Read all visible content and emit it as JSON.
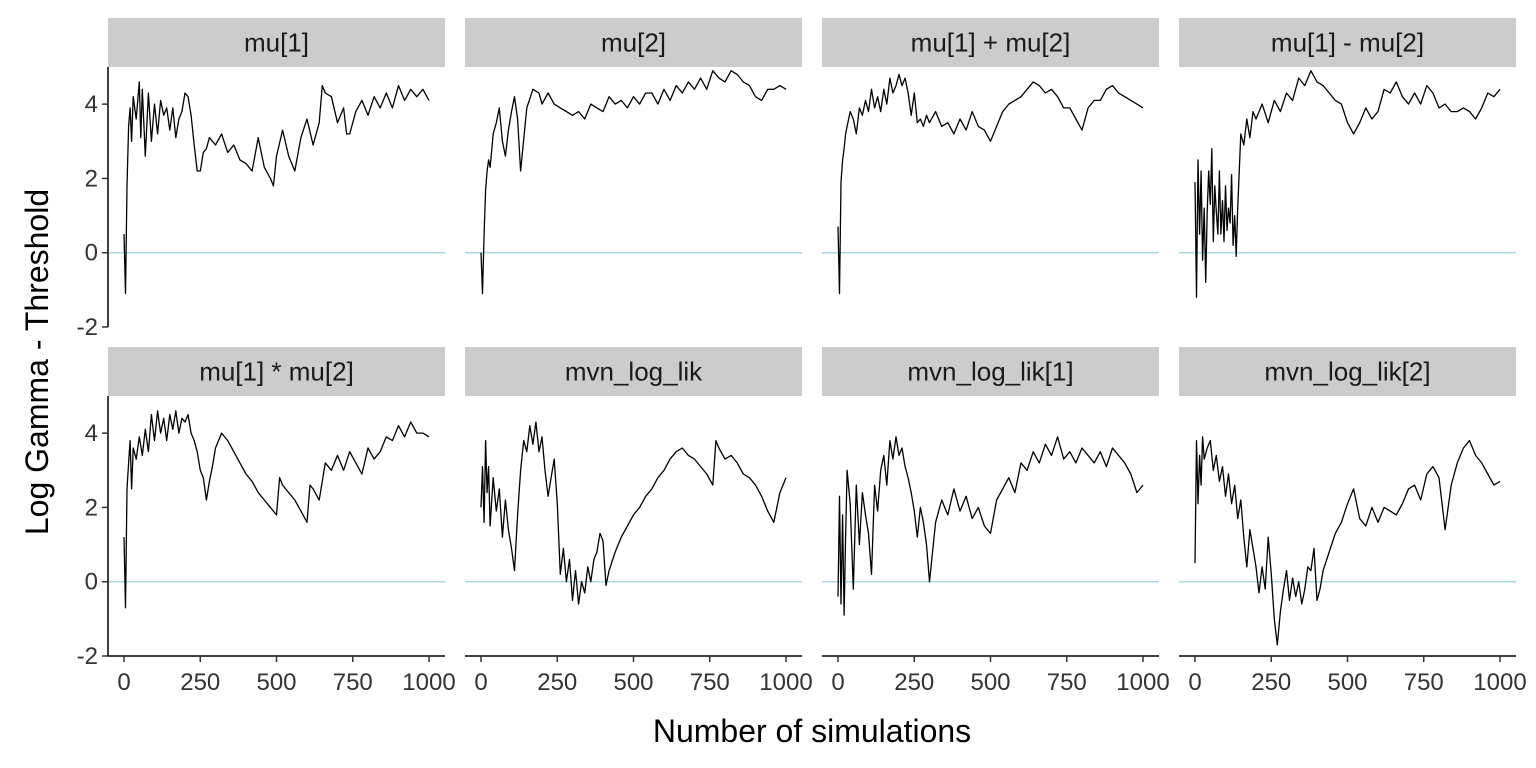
{
  "chart_data": {
    "type": "line",
    "xlabel": "Number of simulations",
    "ylabel": "Log Gamma - Threshold",
    "xlim": [
      0,
      1000
    ],
    "ylim": [
      -2,
      5
    ],
    "x_ticks": [
      0,
      250,
      500,
      750,
      1000
    ],
    "x_tick_labels": [
      "0",
      "250",
      "500",
      "750",
      "1000"
    ],
    "y_ticks": [
      -2,
      0,
      2,
      4
    ],
    "y_tick_labels": [
      "-2",
      "0",
      "2",
      "4"
    ],
    "reference_line": {
      "y": 0,
      "color": "#add8e6"
    },
    "line_color": "#000000",
    "strip_color": "#cccccc",
    "grid": false,
    "legend": "none",
    "facets": [
      {
        "title": "mu[1]",
        "x": [
          0,
          5,
          10,
          15,
          20,
          25,
          30,
          40,
          50,
          55,
          60,
          70,
          80,
          90,
          100,
          110,
          120,
          130,
          140,
          150,
          160,
          170,
          180,
          190,
          200,
          210,
          220,
          230,
          240,
          250,
          260,
          270,
          280,
          300,
          320,
          340,
          360,
          380,
          400,
          420,
          440,
          460,
          480,
          490,
          500,
          520,
          540,
          560,
          580,
          600,
          620,
          640,
          650,
          660,
          680,
          700,
          720,
          730,
          740,
          760,
          780,
          800,
          820,
          840,
          860,
          880,
          900,
          920,
          940,
          960,
          980,
          1000
        ],
        "y": [
          0.5,
          -1.1,
          1.8,
          3.4,
          3.9,
          3.0,
          4.2,
          3.6,
          4.6,
          3.1,
          4.4,
          2.6,
          4.3,
          3.0,
          4.0,
          3.2,
          4.1,
          3.7,
          3.9,
          3.3,
          3.9,
          3.1,
          3.6,
          3.8,
          4.3,
          4.2,
          3.7,
          2.9,
          2.2,
          2.2,
          2.7,
          2.8,
          3.1,
          2.9,
          3.2,
          2.7,
          2.9,
          2.5,
          2.4,
          2.2,
          3.1,
          2.3,
          2.0,
          1.8,
          2.6,
          3.3,
          2.6,
          2.2,
          3.1,
          3.6,
          2.9,
          3.5,
          4.5,
          4.3,
          4.2,
          3.5,
          3.9,
          3.2,
          3.2,
          3.8,
          4.1,
          3.7,
          4.2,
          3.9,
          4.3,
          3.9,
          4.5,
          4.1,
          4.4,
          4.2,
          4.4,
          4.1
        ]
      },
      {
        "title": "mu[2]",
        "x": [
          0,
          5,
          10,
          15,
          20,
          25,
          30,
          40,
          50,
          60,
          70,
          80,
          90,
          100,
          110,
          120,
          130,
          150,
          170,
          190,
          200,
          220,
          240,
          260,
          280,
          300,
          320,
          340,
          360,
          380,
          400,
          420,
          440,
          460,
          480,
          500,
          520,
          540,
          560,
          580,
          600,
          620,
          640,
          660,
          680,
          700,
          720,
          740,
          760,
          780,
          800,
          820,
          840,
          860,
          880,
          900,
          920,
          940,
          960,
          980,
          1000
        ],
        "y": [
          0,
          -1.1,
          0.5,
          1.7,
          2.2,
          2.5,
          2.3,
          3.2,
          3.5,
          3.9,
          3.0,
          2.6,
          3.3,
          3.8,
          4.2,
          3.6,
          2.2,
          3.9,
          4.4,
          4.3,
          4.0,
          4.3,
          4.0,
          3.9,
          3.8,
          3.7,
          3.8,
          3.6,
          4.0,
          3.9,
          3.8,
          4.2,
          4.0,
          4.1,
          3.9,
          4.2,
          4.0,
          4.3,
          4.3,
          4.0,
          4.4,
          4.1,
          4.5,
          4.3,
          4.6,
          4.4,
          4.7,
          4.4,
          4.9,
          4.7,
          4.6,
          4.9,
          4.8,
          4.6,
          4.5,
          4.2,
          4.1,
          4.4,
          4.4,
          4.5,
          4.4
        ]
      },
      {
        "title": "mu[1] + mu[2]",
        "x": [
          0,
          5,
          10,
          15,
          20,
          25,
          30,
          40,
          50,
          60,
          70,
          80,
          90,
          100,
          110,
          120,
          130,
          140,
          150,
          160,
          170,
          180,
          190,
          200,
          210,
          220,
          230,
          240,
          250,
          260,
          270,
          280,
          290,
          300,
          320,
          340,
          360,
          380,
          400,
          420,
          440,
          460,
          480,
          500,
          520,
          540,
          560,
          580,
          600,
          620,
          640,
          660,
          680,
          700,
          720,
          740,
          760,
          780,
          800,
          820,
          840,
          860,
          880,
          900,
          920,
          940,
          960,
          980,
          1000
        ],
        "y": [
          0.7,
          -1.1,
          1.9,
          2.5,
          2.8,
          3.2,
          3.4,
          3.8,
          3.6,
          3.2,
          3.9,
          3.7,
          4.1,
          3.8,
          4.4,
          3.9,
          4.2,
          3.8,
          4.4,
          4.0,
          4.7,
          4.3,
          4.5,
          4.8,
          4.5,
          4.7,
          4.3,
          3.7,
          4.3,
          3.5,
          3.6,
          3.4,
          3.7,
          3.5,
          3.8,
          3.4,
          3.5,
          3.2,
          3.6,
          3.3,
          3.8,
          3.4,
          3.3,
          3.0,
          3.4,
          3.8,
          4.0,
          4.1,
          4.2,
          4.4,
          4.6,
          4.5,
          4.3,
          4.4,
          4.2,
          3.9,
          3.9,
          3.6,
          3.3,
          3.9,
          4.1,
          4.1,
          4.4,
          4.5,
          4.3,
          4.2,
          4.1,
          4.0,
          3.9
        ]
      },
      {
        "title": "mu[1] - mu[2]",
        "x": [
          0,
          5,
          10,
          15,
          20,
          25,
          30,
          35,
          40,
          45,
          50,
          55,
          60,
          65,
          70,
          75,
          80,
          85,
          90,
          95,
          100,
          105,
          110,
          115,
          120,
          125,
          130,
          135,
          140,
          150,
          160,
          170,
          180,
          190,
          200,
          220,
          240,
          260,
          280,
          300,
          320,
          340,
          360,
          380,
          400,
          420,
          440,
          460,
          480,
          500,
          520,
          540,
          560,
          580,
          600,
          620,
          640,
          660,
          680,
          700,
          720,
          740,
          760,
          780,
          800,
          820,
          840,
          860,
          880,
          900,
          920,
          940,
          960,
          980,
          1000
        ],
        "y": [
          1.9,
          -1.2,
          2.5,
          0.5,
          2.2,
          -0.2,
          1.2,
          -0.8,
          1.1,
          2.2,
          1.3,
          2.8,
          0.3,
          1.8,
          1.1,
          0.5,
          2.2,
          0.5,
          1.4,
          0.3,
          1.8,
          0.6,
          1.2,
          0.8,
          2.1,
          0.2,
          1.0,
          -0.1,
          1.2,
          3.2,
          2.9,
          3.6,
          3.1,
          3.8,
          3.6,
          4.0,
          3.5,
          4.1,
          3.8,
          4.3,
          4.1,
          4.7,
          4.5,
          4.9,
          4.6,
          4.5,
          4.3,
          4.1,
          4.0,
          3.5,
          3.2,
          3.5,
          3.9,
          3.6,
          3.8,
          4.4,
          4.3,
          4.6,
          4.2,
          4.0,
          4.3,
          4.0,
          4.5,
          4.3,
          3.9,
          4.0,
          3.8,
          3.8,
          3.9,
          3.8,
          3.6,
          3.9,
          4.3,
          4.2,
          4.4
        ]
      },
      {
        "title": "mu[1] * mu[2]",
        "x": [
          0,
          5,
          10,
          15,
          20,
          25,
          30,
          40,
          50,
          60,
          70,
          80,
          90,
          100,
          110,
          120,
          130,
          140,
          150,
          160,
          170,
          180,
          190,
          200,
          210,
          220,
          230,
          240,
          250,
          260,
          270,
          280,
          290,
          300,
          320,
          340,
          360,
          380,
          400,
          420,
          440,
          460,
          480,
          500,
          510,
          520,
          540,
          560,
          580,
          600,
          610,
          620,
          640,
          660,
          680,
          700,
          720,
          740,
          760,
          780,
          800,
          820,
          840,
          860,
          880,
          900,
          920,
          940,
          960,
          980,
          1000
        ],
        "y": [
          1.2,
          -0.7,
          2.5,
          3.2,
          3.8,
          2.5,
          3.6,
          3.3,
          3.9,
          3.4,
          4.1,
          3.5,
          4.5,
          3.8,
          4.6,
          4.0,
          4.4,
          3.8,
          4.5,
          4.1,
          4.6,
          4.0,
          4.4,
          4.3,
          4.5,
          4.0,
          3.8,
          3.5,
          3.0,
          2.8,
          2.2,
          2.7,
          3.1,
          3.6,
          4.0,
          3.8,
          3.5,
          3.2,
          2.9,
          2.7,
          2.4,
          2.2,
          2.0,
          1.8,
          2.8,
          2.6,
          2.4,
          2.2,
          1.9,
          1.6,
          2.6,
          2.5,
          2.2,
          3.2,
          3.0,
          3.4,
          3.0,
          3.5,
          3.2,
          2.9,
          3.6,
          3.3,
          3.5,
          3.9,
          3.8,
          4.2,
          3.9,
          4.3,
          4.0,
          4.0,
          3.9
        ]
      },
      {
        "title": "mvn_log_lik",
        "x": [
          0,
          5,
          10,
          15,
          20,
          25,
          30,
          40,
          50,
          60,
          70,
          80,
          90,
          100,
          110,
          120,
          130,
          140,
          150,
          160,
          170,
          180,
          190,
          200,
          210,
          220,
          230,
          240,
          250,
          260,
          270,
          280,
          290,
          300,
          310,
          320,
          330,
          340,
          350,
          360,
          370,
          380,
          390,
          400,
          410,
          420,
          440,
          460,
          480,
          500,
          520,
          540,
          560,
          580,
          600,
          620,
          640,
          660,
          680,
          700,
          720,
          740,
          760,
          770,
          780,
          800,
          820,
          840,
          860,
          880,
          900,
          920,
          940,
          960,
          980,
          1000
        ],
        "y": [
          2.0,
          3.1,
          1.6,
          3.8,
          2.4,
          3.1,
          1.5,
          2.8,
          1.9,
          2.5,
          1.2,
          2.2,
          1.4,
          0.9,
          0.3,
          1.8,
          3.0,
          3.8,
          3.5,
          4.2,
          3.7,
          4.3,
          3.5,
          3.9,
          3.0,
          2.3,
          2.8,
          3.3,
          2.1,
          0.2,
          0.9,
          0.0,
          0.6,
          -0.5,
          0.3,
          -0.6,
          0.0,
          -0.3,
          0.4,
          0.0,
          0.6,
          0.8,
          1.3,
          1.1,
          -0.1,
          0.3,
          0.8,
          1.2,
          1.5,
          1.8,
          2.0,
          2.3,
          2.5,
          2.8,
          3.0,
          3.3,
          3.5,
          3.6,
          3.4,
          3.3,
          3.1,
          2.9,
          2.6,
          3.8,
          3.6,
          3.3,
          3.4,
          3.2,
          2.9,
          2.8,
          2.6,
          2.3,
          1.9,
          1.6,
          2.4,
          2.8
        ]
      },
      {
        "title": "mvn_log_lik[1]",
        "x": [
          0,
          5,
          10,
          15,
          20,
          25,
          30,
          40,
          50,
          60,
          70,
          80,
          90,
          100,
          110,
          120,
          130,
          140,
          150,
          160,
          170,
          180,
          190,
          200,
          210,
          220,
          230,
          240,
          250,
          260,
          270,
          280,
          290,
          300,
          320,
          340,
          360,
          380,
          400,
          420,
          440,
          460,
          480,
          500,
          520,
          540,
          560,
          580,
          600,
          620,
          640,
          660,
          680,
          700,
          720,
          740,
          760,
          780,
          800,
          820,
          840,
          860,
          880,
          900,
          920,
          940,
          960,
          980,
          1000
        ],
        "y": [
          -0.4,
          2.3,
          -0.6,
          1.8,
          -0.9,
          1.2,
          3.0,
          2.1,
          -0.2,
          2.6,
          1.0,
          2.4,
          1.8,
          1.3,
          0.2,
          2.6,
          1.9,
          3.0,
          3.4,
          2.6,
          3.8,
          3.3,
          3.9,
          3.4,
          3.6,
          3.1,
          2.8,
          2.4,
          1.9,
          1.2,
          2.0,
          1.6,
          1.0,
          0.0,
          1.6,
          2.2,
          1.8,
          2.5,
          1.9,
          2.3,
          1.7,
          2.0,
          1.5,
          1.3,
          2.2,
          2.5,
          2.8,
          2.4,
          3.2,
          3.0,
          3.5,
          3.2,
          3.7,
          3.4,
          3.9,
          3.3,
          3.5,
          3.2,
          3.6,
          3.4,
          3.2,
          3.5,
          3.1,
          3.6,
          3.4,
          3.2,
          2.9,
          2.4,
          2.6
        ]
      },
      {
        "title": "mvn_log_lik[2]",
        "x": [
          0,
          5,
          10,
          15,
          20,
          25,
          30,
          40,
          50,
          60,
          70,
          80,
          90,
          100,
          110,
          120,
          130,
          140,
          150,
          160,
          170,
          180,
          190,
          200,
          210,
          220,
          230,
          240,
          250,
          260,
          270,
          280,
          290,
          300,
          310,
          320,
          330,
          340,
          350,
          360,
          370,
          380,
          390,
          400,
          410,
          420,
          440,
          460,
          480,
          500,
          520,
          540,
          560,
          580,
          600,
          620,
          640,
          660,
          680,
          700,
          720,
          740,
          760,
          780,
          800,
          820,
          840,
          860,
          880,
          900,
          920,
          940,
          960,
          980,
          1000
        ],
        "y": [
          0.5,
          3.8,
          2.1,
          3.4,
          2.6,
          3.9,
          3.3,
          3.6,
          3.8,
          3.0,
          3.4,
          2.7,
          3.1,
          2.3,
          2.9,
          2.1,
          2.6,
          1.7,
          2.2,
          1.2,
          0.4,
          1.4,
          0.9,
          0.4,
          -0.3,
          0.4,
          -0.2,
          1.2,
          0.2,
          -1.0,
          -1.7,
          -0.8,
          -0.2,
          0.3,
          -0.5,
          0.1,
          -0.4,
          0.0,
          -0.6,
          -0.2,
          0.4,
          0.3,
          0.9,
          -0.5,
          -0.2,
          0.3,
          0.8,
          1.3,
          1.6,
          2.1,
          2.5,
          1.7,
          1.5,
          2.0,
          1.6,
          2.0,
          1.9,
          1.8,
          2.1,
          2.5,
          2.6,
          2.2,
          2.9,
          3.1,
          2.8,
          1.4,
          2.6,
          3.2,
          3.6,
          3.8,
          3.4,
          3.2,
          2.9,
          2.6,
          2.7
        ]
      }
    ]
  }
}
